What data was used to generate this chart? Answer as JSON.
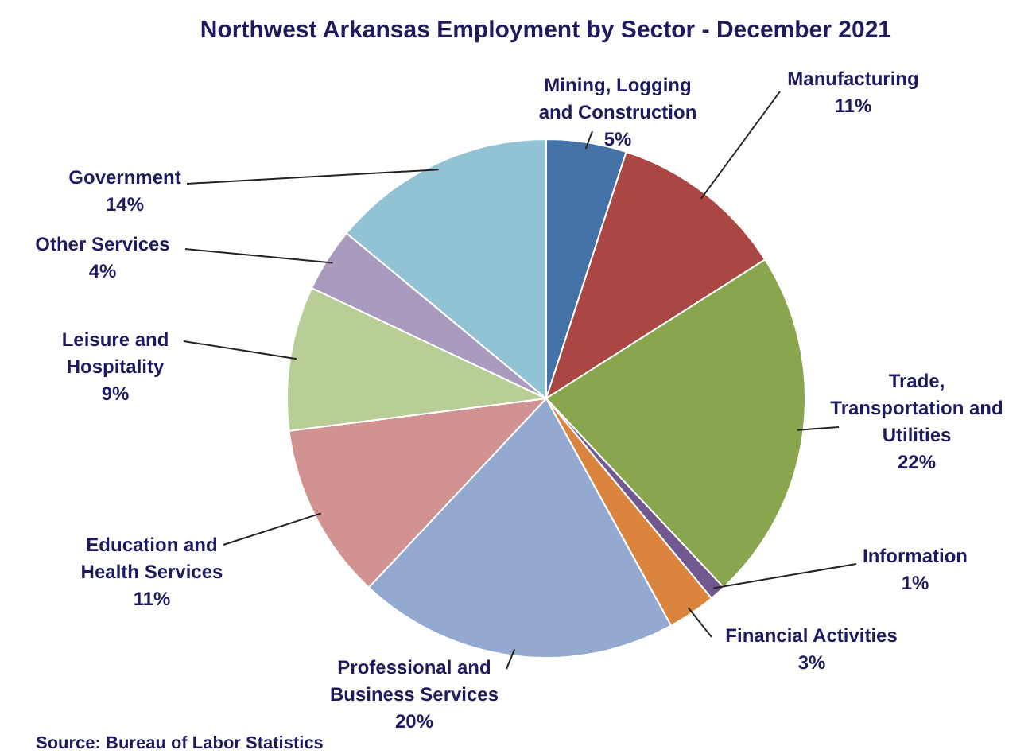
{
  "chart_data": {
    "type": "pie",
    "title": "Northwest Arkansas Employment by Sector - December 2021",
    "categories": [
      "Mining, Logging and Construction",
      "Manufacturing",
      "Trade, Transportation and Utilities",
      "Information",
      "Financial Activities",
      "Professional and Business Services",
      "Education and Health Services",
      "Leisure and Hospitality",
      "Other Services",
      "Government"
    ],
    "values": [
      5,
      11,
      22,
      1,
      3,
      20,
      11,
      9,
      4,
      14
    ],
    "colors": [
      "#4572a7",
      "#aa4643",
      "#89a54e",
      "#71588f",
      "#db843d",
      "#93a9cf",
      "#d19392",
      "#b9cd96",
      "#a99bbd",
      "#92c3d5"
    ],
    "value_labels": [
      "5%",
      "11%",
      "22%",
      "1%",
      "3%",
      "20%",
      "11%",
      "9%",
      "4%",
      "14%"
    ],
    "annotations": [
      "Source: Bureau of Labor Statistics"
    ]
  }
}
